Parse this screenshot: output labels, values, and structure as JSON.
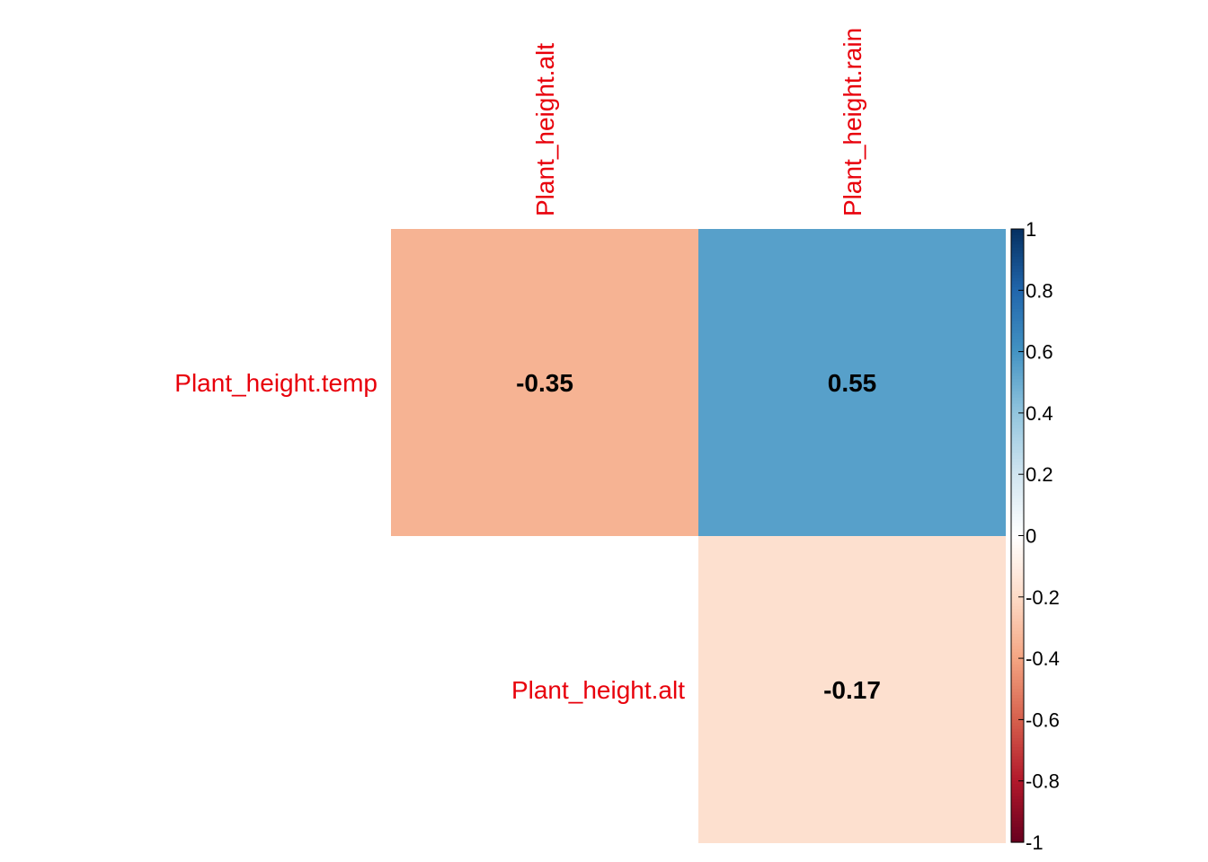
{
  "chart_data": {
    "type": "heatmap",
    "method": "correlation matrix (upper triangle)",
    "rows": [
      "Plant_height.temp",
      "Plant_height.alt"
    ],
    "cols": [
      "Plant_height.alt",
      "Plant_height.rain"
    ],
    "cells": [
      {
        "row": 0,
        "col": 0,
        "value": -0.35,
        "label": "-0.35"
      },
      {
        "row": 0,
        "col": 1,
        "value": 0.55,
        "label": "0.55"
      },
      {
        "row": 1,
        "col": 1,
        "value": -0.17,
        "label": "-0.17"
      }
    ],
    "colorbar": {
      "range": [
        -1,
        1
      ],
      "tick_labels": [
        "1",
        "0.8",
        "0.6",
        "0.4",
        "0.2",
        "0",
        "-0.2",
        "-0.4",
        "-0.6",
        "-0.8",
        "-1"
      ]
    },
    "colors": {
      "label_color": "#e8000b",
      "value_color": "#000000",
      "gradient": [
        "#67001f",
        "#b2182b",
        "#d6604d",
        "#f4a582",
        "#fddbc7",
        "#ffffff",
        "#d1e5f0",
        "#92c5de",
        "#4393c3",
        "#2166ac",
        "#053061"
      ]
    }
  }
}
